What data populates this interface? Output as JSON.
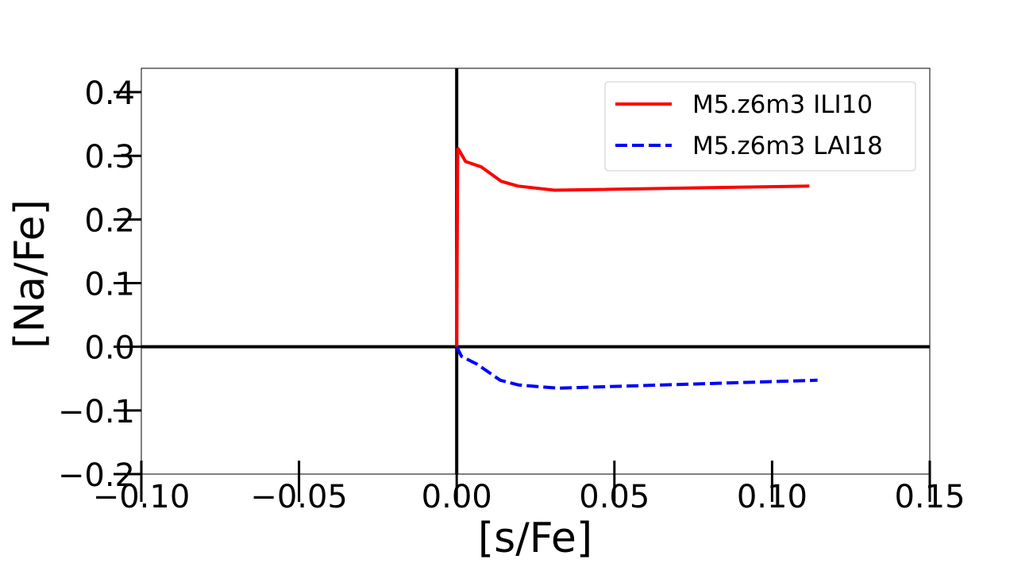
{
  "chart_data": {
    "type": "line",
    "title": "",
    "xlabel": "[s/Fe]",
    "ylabel": "[Na/Fe]",
    "xlim": [
      -0.1,
      0.15
    ],
    "ylim": [
      -0.2,
      0.4375
    ],
    "xticks": [
      -0.1,
      -0.05,
      0.0,
      0.05,
      0.1,
      0.15
    ],
    "xtick_labels": [
      "−0.10",
      "−0.05",
      "0.00",
      "0.05",
      "0.10",
      "0.15"
    ],
    "yticks": [
      -0.2,
      -0.1,
      0.0,
      0.1,
      0.2,
      0.3,
      0.4
    ],
    "ytick_labels": [
      "−0.2",
      "−0.1",
      "0.0",
      "0.1",
      "0.2",
      "0.3",
      "0.4"
    ],
    "grid": false,
    "reference_lines": {
      "x": 0,
      "y": 0
    },
    "legend_position": "top-right",
    "series": [
      {
        "name": "M5.z6m3 ILI10",
        "color": "#ff0000",
        "style": "solid",
        "x": [
          0.0,
          0.0003,
          0.0005,
          0.0028,
          0.0078,
          0.0141,
          0.0194,
          0.031,
          0.1118
        ],
        "y": [
          0.0,
          0.31,
          0.311,
          0.291,
          0.2825,
          0.26,
          0.2525,
          0.246,
          0.2525
        ]
      },
      {
        "name": "M5.z6m3 LAI18",
        "color": "#0000ff",
        "style": "dashed",
        "x": [
          0.0,
          0.0015,
          0.0065,
          0.0138,
          0.0196,
          0.032,
          0.1144
        ],
        "y": [
          0.0,
          -0.015,
          -0.0275,
          -0.0525,
          -0.06,
          -0.065,
          -0.0525
        ]
      }
    ]
  }
}
